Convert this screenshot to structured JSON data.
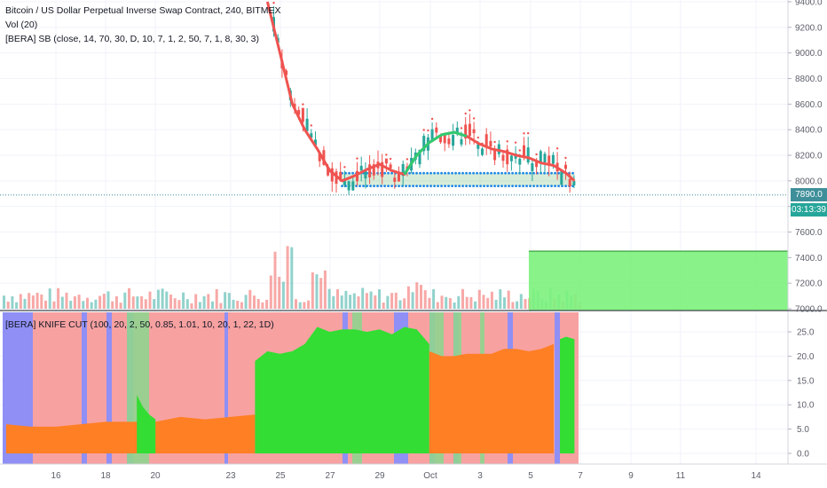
{
  "chart_title": "Bitcoin / US Dollar Perpetual Inverse Swap Contract, 240, BITMEX",
  "indicators": {
    "volume": "Vol (20)",
    "sb": "[BERA] SB (close, 14, 70, 30, D, 10, 7, 1, 2, 50, 7, 1, 8, 30, 3)",
    "knife": "[BERA] KNIFE CUT (100, 20, 2, 50, 0.85, 1.01, 10, 20, 1, 22, 1D)"
  },
  "price_tags": {
    "last_price": "7890.0",
    "countdown": "03:13:39"
  },
  "colors": {
    "up": "#26a69a",
    "down": "#ef5350",
    "ma": "#ef5350",
    "ma_green": "#2ecc71",
    "knife_orange": "#ff7f24",
    "knife_green": "#33dd33",
    "bg_red": "#f7a1a1",
    "bg_blue": "#8f8ff5",
    "bg_green": "#8fd48f",
    "zone_green": "#7cf27c",
    "countdown_bg": "#26a69a"
  },
  "chart_data": [
    {
      "type": "candlestick",
      "title": "Bitcoin / US Dollar Perpetual Inverse Swap Contract, 240, BITMEX",
      "x_ticks": [
        "16",
        "18",
        "20",
        "23",
        "25",
        "27",
        "29",
        "Oct",
        "3",
        "5",
        "7",
        "9",
        "11",
        "14"
      ],
      "y_ticks": [
        "9400.0",
        "9200.0",
        "9000.0",
        "8800.0",
        "8600.0",
        "8400.0",
        "8200.0",
        "8000.0",
        "7800.0",
        "7600.0",
        "7400.0",
        "7200.0",
        "7000.0"
      ],
      "ylim": [
        6990,
        9410
      ],
      "last_price": 7890.0,
      "trend_line": [
        {
          "date": "Sep 24 12:00",
          "value": 9400
        },
        {
          "date": "Sep 25 00:00",
          "value": 9000
        },
        {
          "date": "Sep 25 12:00",
          "value": 8600
        },
        {
          "date": "Sep 26 00:00",
          "value": 8400
        },
        {
          "date": "Sep 26 12:00",
          "value": 8250
        },
        {
          "date": "Sep 27 00:00",
          "value": 8080
        },
        {
          "date": "Sep 27 12:00",
          "value": 8000
        },
        {
          "date": "Sep 28 00:00",
          "value": 8040
        },
        {
          "date": "Sep 28 12:00",
          "value": 8090
        },
        {
          "date": "Sep 29 00:00",
          "value": 8130
        },
        {
          "date": "Sep 29 12:00",
          "value": 8080
        },
        {
          "date": "Sep 30 00:00",
          "value": 8050
        },
        {
          "date": "Sep 30 12:00",
          "value": 8200
        },
        {
          "date": "Oct 1 00:00",
          "value": 8300
        },
        {
          "date": "Oct 1 12:00",
          "value": 8360
        },
        {
          "date": "Oct 2 00:00",
          "value": 8380
        },
        {
          "date": "Oct 2 12:00",
          "value": 8350
        },
        {
          "date": "Oct 3 00:00",
          "value": 8290
        },
        {
          "date": "Oct 3 12:00",
          "value": 8250
        },
        {
          "date": "Oct 4 00:00",
          "value": 8230
        },
        {
          "date": "Oct 4 12:00",
          "value": 8200
        },
        {
          "date": "Oct 5 00:00",
          "value": 8180
        },
        {
          "date": "Oct 5 12:00",
          "value": 8140
        },
        {
          "date": "Oct 6 00:00",
          "value": 8120
        },
        {
          "date": "Oct 6 12:00",
          "value": 8060
        },
        {
          "date": "Oct 6 20:00",
          "value": 8000
        }
      ],
      "support_band": {
        "from": "Sep 27 12:00",
        "to": "Oct 6 20:00",
        "upper": 8060,
        "lower": 7960
      },
      "target_zone": {
        "from": "Oct 5",
        "to": "Oct 15",
        "upper": 7450,
        "lower": 6990
      }
    },
    {
      "type": "area",
      "title": "[BERA] KNIFE CUT (100, 20, 2, 50, 0.85, 1.01, 10, 20, 1, 22, 1D)",
      "y_ticks": [
        "25.0",
        "20.0",
        "15.0",
        "10.0",
        "5.0",
        "0.0"
      ],
      "ylim": [
        -2.8,
        28.5
      ],
      "series": [
        {
          "color": "orange",
          "x": [
            "Sep 14",
            "Sep 15",
            "Sep 16",
            "Sep 17",
            "Sep 18",
            "Sep 19",
            "Sep 20",
            "Sep 21",
            "Sep 22",
            "Sep 23",
            "Sep 24"
          ],
          "values": [
            6.0,
            5.5,
            5.5,
            6.0,
            6.5,
            6.5,
            6.5,
            7.5,
            7.0,
            7.5,
            8.0
          ]
        },
        {
          "color": "green",
          "x": [
            "Sep 19 06:00",
            "Sep 19 12:00",
            "Sep 19 18:00",
            "Sep 20 00:00"
          ],
          "values": [
            12.0,
            9.5,
            8.0,
            7.0
          ]
        },
        {
          "color": "green",
          "x": [
            "Sep 24",
            "Sep 24 12:00",
            "Sep 25",
            "Sep 25 12:00",
            "Sep 26",
            "Sep 26 12:00",
            "Sep 27",
            "Sep 27 12:00",
            "Sep 28",
            "Sep 28 12:00",
            "Sep 29",
            "Sep 29 12:00",
            "Sep 30",
            "Sep 30 12:00",
            "Oct 1"
          ],
          "values": [
            19.0,
            21.0,
            20.5,
            21.0,
            22.5,
            26.0,
            25.0,
            25.5,
            25.5,
            25.0,
            25.5,
            24.5,
            26.0,
            25.5,
            22.5
          ]
        },
        {
          "color": "orange",
          "x": [
            "Oct 1",
            "Oct 1 12:00",
            "Oct 2",
            "Oct 2 12:00",
            "Oct 3",
            "Oct 3 12:00",
            "Oct 4",
            "Oct 4 12:00",
            "Oct 5",
            "Oct 5 12:00",
            "Oct 6"
          ],
          "values": [
            21.0,
            20.0,
            20.0,
            20.5,
            20.5,
            20.5,
            21.5,
            21.5,
            21.0,
            21.5,
            22.5
          ]
        },
        {
          "color": "green",
          "x": [
            "Oct 6 06:00",
            "Oct 6 12:00",
            "Oct 6 20:00"
          ],
          "values": [
            23.5,
            24.0,
            23.5
          ]
        }
      ]
    }
  ]
}
